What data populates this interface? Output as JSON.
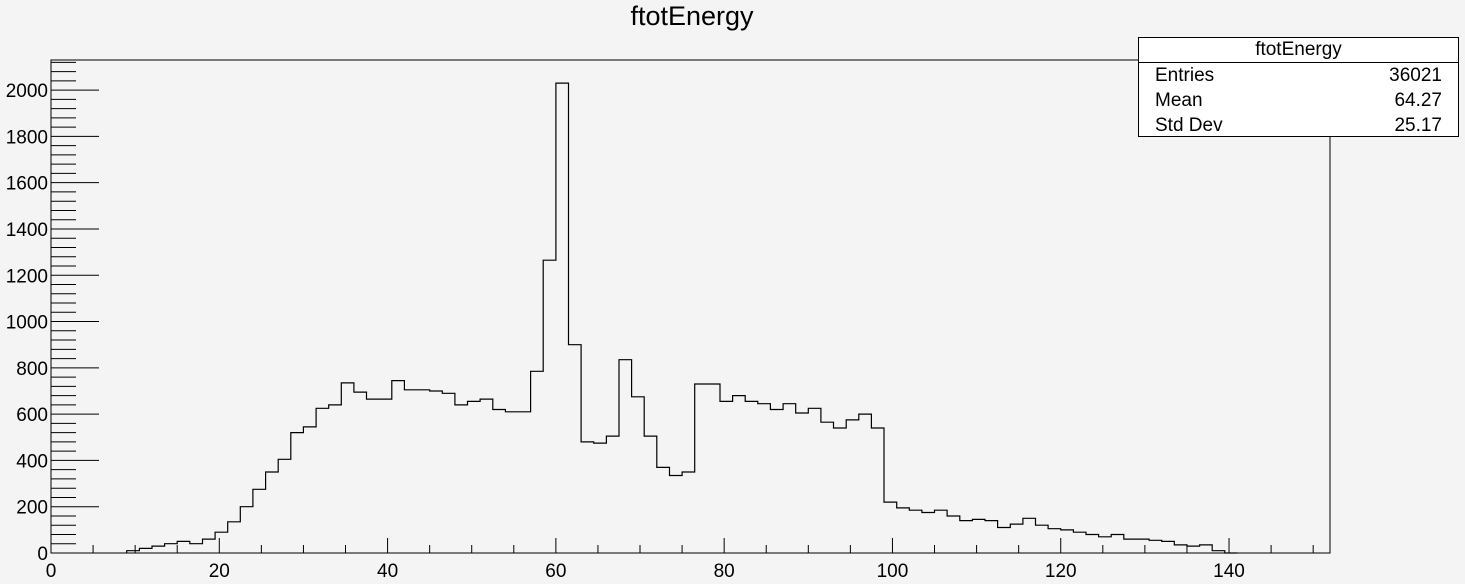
{
  "chart_data": {
    "type": "histogram",
    "title": "ftotEnergy",
    "xlabel": "",
    "ylabel": "",
    "xlim": [
      0,
      152
    ],
    "ylim": [
      0,
      2130
    ],
    "bin_width": 1.5,
    "x_start": 9,
    "x_ticks": [
      0,
      20,
      40,
      60,
      80,
      100,
      120,
      140
    ],
    "y_ticks": [
      0,
      200,
      400,
      600,
      800,
      1000,
      1200,
      1400,
      1600,
      1800,
      2000
    ],
    "values": [
      10,
      20,
      30,
      40,
      50,
      40,
      60,
      90,
      135,
      200,
      275,
      350,
      405,
      520,
      545,
      625,
      640,
      735,
      695,
      665,
      665,
      745,
      705,
      705,
      700,
      690,
      640,
      655,
      665,
      620,
      610,
      610,
      785,
      1265,
      2030,
      900,
      480,
      475,
      505,
      835,
      675,
      505,
      370,
      335,
      350,
      730,
      730,
      655,
      680,
      655,
      645,
      620,
      645,
      605,
      625,
      565,
      540,
      575,
      600,
      540,
      220,
      195,
      185,
      175,
      185,
      160,
      140,
      145,
      140,
      110,
      125,
      150,
      120,
      105,
      100,
      90,
      80,
      70,
      80,
      60,
      60,
      55,
      50,
      35,
      30,
      35,
      10,
      0
    ],
    "grid": false,
    "line_color": "#000000"
  },
  "stats": {
    "title": "ftotEnergy",
    "rows": [
      {
        "label": "Entries",
        "value": "36021"
      },
      {
        "label": "Mean",
        "value": "64.27"
      },
      {
        "label": "Std Dev",
        "value": "25.17"
      }
    ]
  }
}
